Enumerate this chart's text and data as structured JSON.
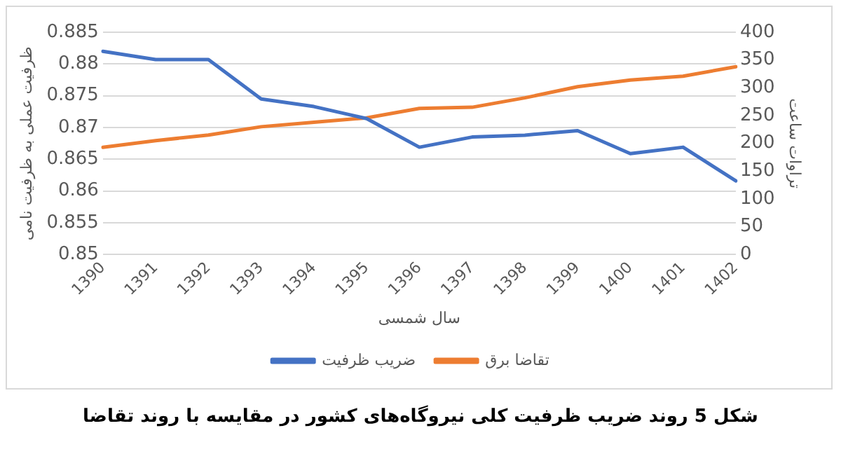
{
  "chart_data": {
    "type": "line",
    "xlabel": "سال شمسی",
    "ylabel": "ظرفیت عملی به ظرفیت نامی",
    "y2label": "تراوات ساعت",
    "categories": [
      "1390",
      "1391",
      "1392",
      "1393",
      "1394",
      "1395",
      "1396",
      "1397",
      "1398",
      "1399",
      "1400",
      "1401",
      "1402"
    ],
    "series": [
      {
        "name": "ضریب ظرفیت",
        "color": "#4472c4",
        "values": [
          0.882,
          0.8807,
          0.8807,
          0.8745,
          0.8733,
          0.8714,
          0.8669,
          0.8685,
          0.8688,
          0.8695,
          0.8659,
          0.8669,
          0.8616
        ]
      },
      {
        "name": "تقاضا برق",
        "color": "#ed7d31",
        "axis": "y2",
        "values": [
          193,
          205,
          215,
          230,
          238,
          246,
          263,
          265,
          282,
          302,
          314,
          321,
          338
        ]
      }
    ],
    "ylim": [
      0.85,
      0.885
    ],
    "yticks": [
      0.85,
      0.855,
      0.86,
      0.865,
      0.87,
      0.875,
      0.88,
      0.885
    ],
    "y2lim": [
      0,
      400
    ],
    "y2ticks": [
      0,
      50,
      100,
      150,
      200,
      250,
      300,
      350,
      400
    ],
    "grid": "y",
    "legend": "bottom",
    "marker": "none",
    "line_style": "solid",
    "annotations": [
      "شکل 5 روند ضریب ظرفیت کلی نیروگاه‌های کشور در مقایسه با روند تقاضا"
    ]
  }
}
